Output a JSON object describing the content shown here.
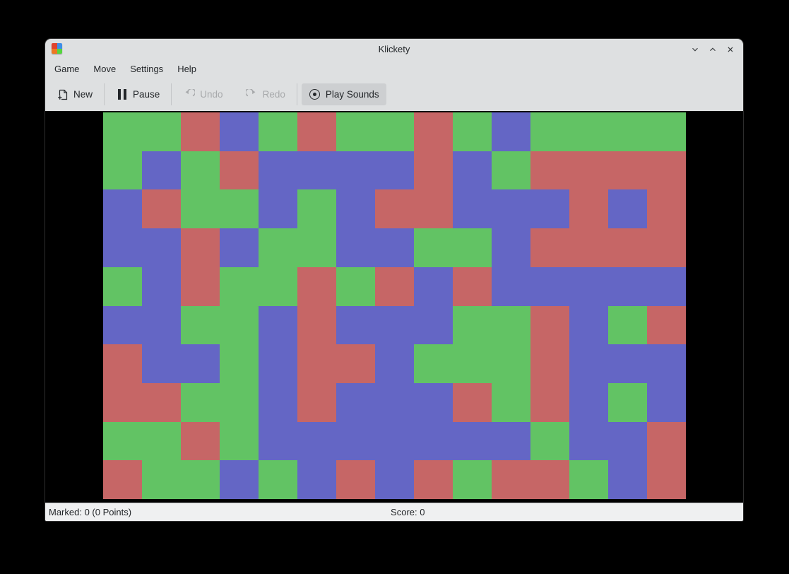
{
  "window": {
    "title": "Klickety",
    "icons": {
      "app": "klickety-tiles-icon",
      "minimize": "chevron-down-icon",
      "maximize": "chevron-up-icon",
      "close": "x-icon"
    }
  },
  "menubar": {
    "items": [
      "Game",
      "Move",
      "Settings",
      "Help"
    ]
  },
  "toolbar": {
    "new_label": "New",
    "pause_label": "Pause",
    "undo_label": "Undo",
    "redo_label": "Redo",
    "play_sounds_label": "Play Sounds",
    "icons": {
      "new": "document-new-icon",
      "pause": "pause-icon",
      "undo": "undo-arrow-icon",
      "redo": "redo-arrow-icon",
      "play_sounds": "sound-circle-dot-icon"
    },
    "disabled_items": [
      "Undo",
      "Redo"
    ],
    "toggled_on": [
      "Play Sounds"
    ]
  },
  "statusbar": {
    "marked": "Marked: 0 (0 Points)",
    "score": "Score: 0"
  },
  "board": {
    "rows": 10,
    "cols": 15,
    "colors": {
      "G": "#62c364",
      "R": "#c66666",
      "B": "#6466c5"
    },
    "grid": [
      "GGRBGRGGRGBGGGG",
      "GBGRBBBBRBGRRRR",
      "BRGGBGBRRBBBRBR",
      "BBRBGGBBGGBRRRR",
      "GBRGGRGRBRBBBBB",
      "BBGGBRBBBGGRBGR",
      "RBBGBRRBGGGRBBB",
      "RRGGBRBBBRGRBGB",
      "GGRGBBBBBBBGBBR",
      "RGGBGBRBRGRRGBR"
    ]
  },
  "theme": {
    "chrome_bg": "#dee0e1",
    "statusbar_bg": "#eff0f1",
    "pressed_button_bg": "#cdcfd1",
    "text_color": "#232629",
    "disabled_text_color": "#a7a9ab",
    "board_bg": "#000000"
  }
}
